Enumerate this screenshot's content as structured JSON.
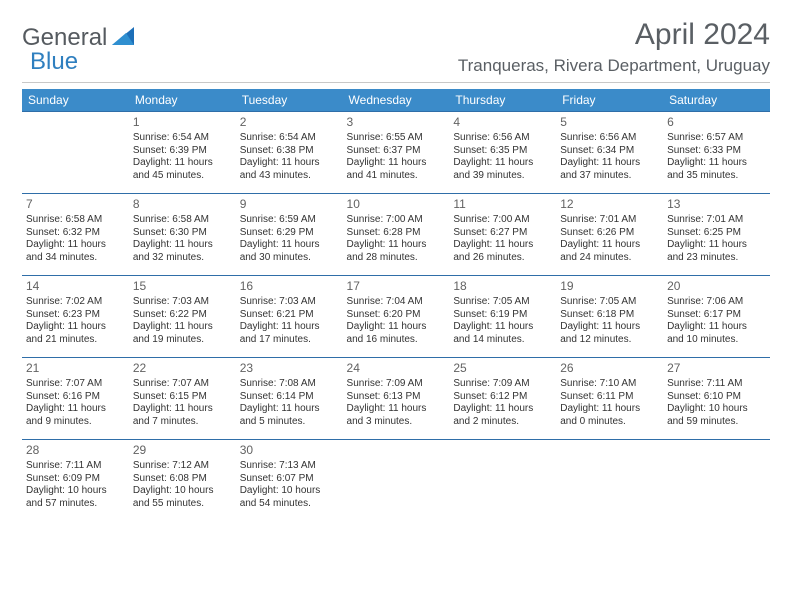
{
  "logo": {
    "general": "General",
    "blue": "Blue"
  },
  "title": "April 2024",
  "subtitle": "Tranqueras, Rivera Department, Uruguay",
  "colors": {
    "header_bg": "#3b8bc9",
    "header_text": "#ffffff",
    "week_border": "#2f6ea8",
    "text": "#333333",
    "title_text": "#5a5f64"
  },
  "dayHeaders": [
    "Sunday",
    "Monday",
    "Tuesday",
    "Wednesday",
    "Thursday",
    "Friday",
    "Saturday"
  ],
  "weeks": [
    [
      null,
      {
        "n": "1",
        "sr": "Sunrise: 6:54 AM",
        "ss": "Sunset: 6:39 PM",
        "dl": "Daylight: 11 hours and 45 minutes."
      },
      {
        "n": "2",
        "sr": "Sunrise: 6:54 AM",
        "ss": "Sunset: 6:38 PM",
        "dl": "Daylight: 11 hours and 43 minutes."
      },
      {
        "n": "3",
        "sr": "Sunrise: 6:55 AM",
        "ss": "Sunset: 6:37 PM",
        "dl": "Daylight: 11 hours and 41 minutes."
      },
      {
        "n": "4",
        "sr": "Sunrise: 6:56 AM",
        "ss": "Sunset: 6:35 PM",
        "dl": "Daylight: 11 hours and 39 minutes."
      },
      {
        "n": "5",
        "sr": "Sunrise: 6:56 AM",
        "ss": "Sunset: 6:34 PM",
        "dl": "Daylight: 11 hours and 37 minutes."
      },
      {
        "n": "6",
        "sr": "Sunrise: 6:57 AM",
        "ss": "Sunset: 6:33 PM",
        "dl": "Daylight: 11 hours and 35 minutes."
      }
    ],
    [
      {
        "n": "7",
        "sr": "Sunrise: 6:58 AM",
        "ss": "Sunset: 6:32 PM",
        "dl": "Daylight: 11 hours and 34 minutes."
      },
      {
        "n": "8",
        "sr": "Sunrise: 6:58 AM",
        "ss": "Sunset: 6:30 PM",
        "dl": "Daylight: 11 hours and 32 minutes."
      },
      {
        "n": "9",
        "sr": "Sunrise: 6:59 AM",
        "ss": "Sunset: 6:29 PM",
        "dl": "Daylight: 11 hours and 30 minutes."
      },
      {
        "n": "10",
        "sr": "Sunrise: 7:00 AM",
        "ss": "Sunset: 6:28 PM",
        "dl": "Daylight: 11 hours and 28 minutes."
      },
      {
        "n": "11",
        "sr": "Sunrise: 7:00 AM",
        "ss": "Sunset: 6:27 PM",
        "dl": "Daylight: 11 hours and 26 minutes."
      },
      {
        "n": "12",
        "sr": "Sunrise: 7:01 AM",
        "ss": "Sunset: 6:26 PM",
        "dl": "Daylight: 11 hours and 24 minutes."
      },
      {
        "n": "13",
        "sr": "Sunrise: 7:01 AM",
        "ss": "Sunset: 6:25 PM",
        "dl": "Daylight: 11 hours and 23 minutes."
      }
    ],
    [
      {
        "n": "14",
        "sr": "Sunrise: 7:02 AM",
        "ss": "Sunset: 6:23 PM",
        "dl": "Daylight: 11 hours and 21 minutes."
      },
      {
        "n": "15",
        "sr": "Sunrise: 7:03 AM",
        "ss": "Sunset: 6:22 PM",
        "dl": "Daylight: 11 hours and 19 minutes."
      },
      {
        "n": "16",
        "sr": "Sunrise: 7:03 AM",
        "ss": "Sunset: 6:21 PM",
        "dl": "Daylight: 11 hours and 17 minutes."
      },
      {
        "n": "17",
        "sr": "Sunrise: 7:04 AM",
        "ss": "Sunset: 6:20 PM",
        "dl": "Daylight: 11 hours and 16 minutes."
      },
      {
        "n": "18",
        "sr": "Sunrise: 7:05 AM",
        "ss": "Sunset: 6:19 PM",
        "dl": "Daylight: 11 hours and 14 minutes."
      },
      {
        "n": "19",
        "sr": "Sunrise: 7:05 AM",
        "ss": "Sunset: 6:18 PM",
        "dl": "Daylight: 11 hours and 12 minutes."
      },
      {
        "n": "20",
        "sr": "Sunrise: 7:06 AM",
        "ss": "Sunset: 6:17 PM",
        "dl": "Daylight: 11 hours and 10 minutes."
      }
    ],
    [
      {
        "n": "21",
        "sr": "Sunrise: 7:07 AM",
        "ss": "Sunset: 6:16 PM",
        "dl": "Daylight: 11 hours and 9 minutes."
      },
      {
        "n": "22",
        "sr": "Sunrise: 7:07 AM",
        "ss": "Sunset: 6:15 PM",
        "dl": "Daylight: 11 hours and 7 minutes."
      },
      {
        "n": "23",
        "sr": "Sunrise: 7:08 AM",
        "ss": "Sunset: 6:14 PM",
        "dl": "Daylight: 11 hours and 5 minutes."
      },
      {
        "n": "24",
        "sr": "Sunrise: 7:09 AM",
        "ss": "Sunset: 6:13 PM",
        "dl": "Daylight: 11 hours and 3 minutes."
      },
      {
        "n": "25",
        "sr": "Sunrise: 7:09 AM",
        "ss": "Sunset: 6:12 PM",
        "dl": "Daylight: 11 hours and 2 minutes."
      },
      {
        "n": "26",
        "sr": "Sunrise: 7:10 AM",
        "ss": "Sunset: 6:11 PM",
        "dl": "Daylight: 11 hours and 0 minutes."
      },
      {
        "n": "27",
        "sr": "Sunrise: 7:11 AM",
        "ss": "Sunset: 6:10 PM",
        "dl": "Daylight: 10 hours and 59 minutes."
      }
    ],
    [
      {
        "n": "28",
        "sr": "Sunrise: 7:11 AM",
        "ss": "Sunset: 6:09 PM",
        "dl": "Daylight: 10 hours and 57 minutes."
      },
      {
        "n": "29",
        "sr": "Sunrise: 7:12 AM",
        "ss": "Sunset: 6:08 PM",
        "dl": "Daylight: 10 hours and 55 minutes."
      },
      {
        "n": "30",
        "sr": "Sunrise: 7:13 AM",
        "ss": "Sunset: 6:07 PM",
        "dl": "Daylight: 10 hours and 54 minutes."
      },
      null,
      null,
      null,
      null
    ]
  ]
}
